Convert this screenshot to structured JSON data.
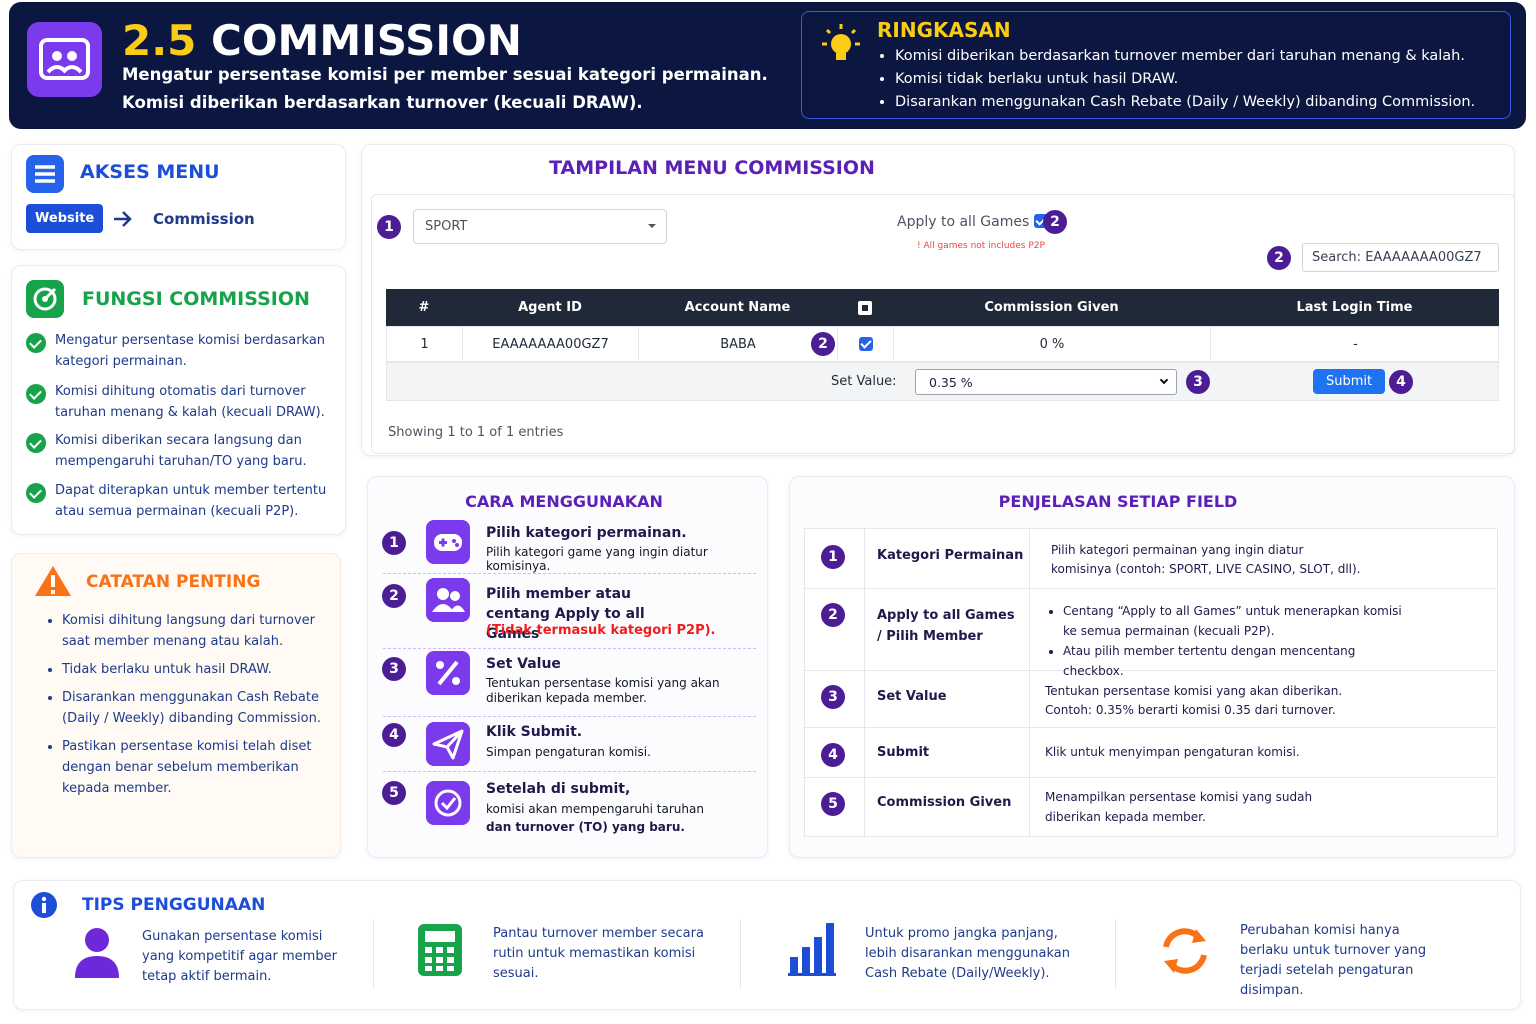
{
  "header": {
    "title_number": "2.5",
    "title_text": "COMMISSION",
    "lines": [
      "Mengatur persentase komisi per member sesuai kategori permainan.",
      "Komisi diberikan berdasarkan turnover (kecuali DRAW)."
    ]
  },
  "summary": {
    "title": "RINGKASAN",
    "items": [
      "Komisi diberikan berdasarkan turnover member dari taruhan menang & kalah.",
      "Komisi tidak berlaku untuk hasil DRAW.",
      "Disarankan menggunakan Cash Rebate (Daily / Weekly) dibanding Commission."
    ]
  },
  "menu_access": {
    "title": "AKSES MENU",
    "button": "Website",
    "link": "Commission"
  },
  "functions": {
    "title": "FUNGSI COMMISSION",
    "items": [
      "Mengatur persentase komisi berdasarkan kategori permainan.",
      "Komisi dihitung otomatis dari turnover taruhan menang & kalah (kecuali DRAW).",
      "Komisi diberikan secara langsung dan mempengaruhi taruhan/TO yang baru.",
      "Dapat diterapkan untuk member tertentu atau semua permainan (kecuali P2P)."
    ]
  },
  "notes": {
    "title": "CATATAN PENTING",
    "items": [
      "Komisi dihitung langsung dari turnover saat member menang atau kalah.",
      "Tidak berlaku untuk hasil DRAW.",
      "Disarankan menggunakan Cash Rebate (Daily / Weekly) dibanding Commission.",
      "Pastikan persentase komisi telah diset dengan benar sebelum memberikan kepada member."
    ]
  },
  "screen": {
    "title": "TAMPILAN MENU COMMISSION",
    "category": "SPORT",
    "apply_all": "Apply to all Games",
    "apply_note": "! All games not includes P2P",
    "search_label": "Search:",
    "search_value": "EAAAAAAA00GZ7",
    "table": {
      "headers": [
        "#",
        "Agent ID",
        "Account Name",
        "Commission Given",
        "Last Login Time"
      ],
      "row": [
        "1",
        "EAAAAAAA00GZ7",
        "BABA",
        "0 %",
        "-"
      ]
    },
    "set_value_label": "Set Value:",
    "set_value": "0.35 %",
    "submit": "Submit",
    "footer": "Showing 1 to 1 of 1 entries",
    "badges": {
      "category": 1,
      "apply": 2,
      "search": 2,
      "row": 2,
      "set_value": 3,
      "submit": 4
    }
  },
  "how_to": {
    "title": "CARA MENGGUNAKAN",
    "steps": [
      {
        "number": 1,
        "title": "Pilih kategori permainan.",
        "desc": "Pilih kategori game yang ingin diatur komisinya."
      },
      {
        "number": 2,
        "title": "Pilih member atau centang Apply to all Games",
        "note": "(Tidak termasuk kategori P2P)."
      },
      {
        "number": 3,
        "title": "Set Value",
        "desc": "Tentukan persentase komisi yang akan diberikan kepada member."
      },
      {
        "number": 4,
        "title": "Klik Submit.",
        "desc": "Simpan pengaturan komisi."
      },
      {
        "number": 5,
        "title": "Setelah di submit,",
        "desc": "komisi akan mempengaruhi taruhan",
        "desc_bold": "dan turnover (TO) yang baru."
      }
    ]
  },
  "fields": {
    "title": "PENJELASAN SETIAP FIELD",
    "rows": [
      {
        "number": 1,
        "field": "Kategori Permainan",
        "desc": [
          "Pilih kategori permainan yang ingin diatur komisinya (contoh: SPORT, LIVE CASINO, SLOT, dll)."
        ]
      },
      {
        "number": 2,
        "field": "Apply to all Games / Pilih Member",
        "desc": [
          "Centang “Apply to all Games” untuk menerapkan komisi ke semua permainan (kecuali P2P).",
          "Atau pilih member tertentu dengan mencentang checkbox."
        ]
      },
      {
        "number": 3,
        "field": "Set Value",
        "desc": [
          "Tentukan persentase komisi yang akan diberikan.",
          "Contoh: 0.35% berarti komisi 0.35 dari turnover."
        ]
      },
      {
        "number": 4,
        "field": "Submit",
        "desc": [
          "Klik untuk menyimpan pengaturan komisi."
        ]
      },
      {
        "number": 5,
        "field": "Commission Given",
        "desc": [
          "Menampilkan persentase komisi yang sudah diberikan kepada member."
        ]
      }
    ]
  },
  "tips": {
    "title": "TIPS PENGGUNAAN",
    "items": [
      "Gunakan persentase komisi yang kompetitif agar member tetap aktif bermain.",
      "Pantau turnover member secara rutin untuk memastikan komisi sesuai.",
      "Untuk promo jangka panjang, lebih disarankan menggunakan Cash Rebate (Daily/Weekly).",
      "Perubahan komisi hanya berlaku untuk turnover yang terjadi setelah pengaturan disimpan."
    ]
  }
}
